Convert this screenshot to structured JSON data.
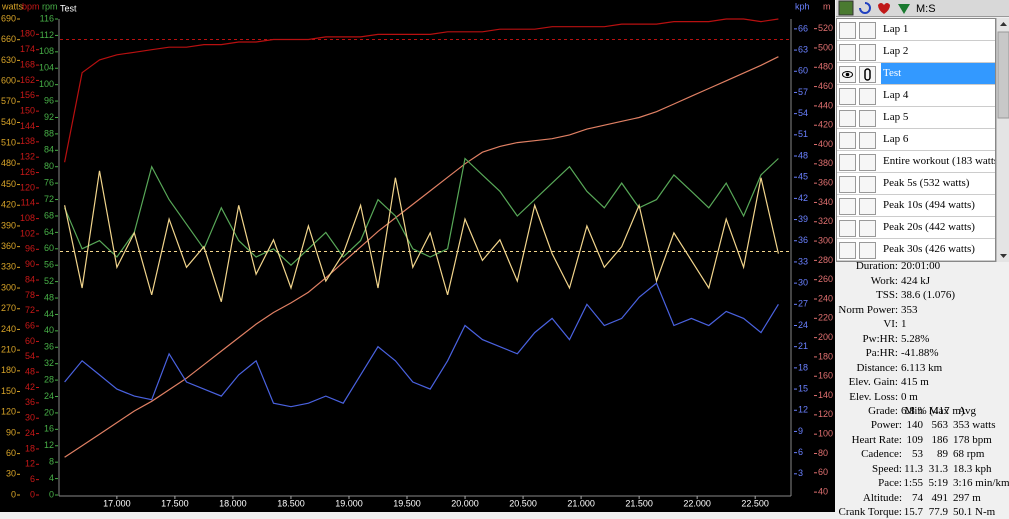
{
  "chart_data": {
    "type": "line",
    "title": "Test",
    "x": [
      16.55,
      16.7,
      16.85,
      17,
      17.15,
      17.3,
      17.45,
      17.6,
      17.75,
      17.9,
      18.05,
      18.2,
      18.35,
      18.5,
      18.65,
      18.8,
      18.95,
      19.1,
      19.25,
      19.4,
      19.55,
      19.7,
      19.85,
      20,
      20.15,
      20.3,
      20.45,
      20.6,
      20.75,
      20.9,
      21.05,
      21.2,
      21.35,
      21.5,
      21.65,
      21.8,
      21.95,
      22.1,
      22.25,
      22.4,
      22.55,
      22.7
    ],
    "xlim": [
      16.51,
      22.8
    ],
    "xticks": [
      {
        "value": 17,
        "label": "17.000"
      },
      {
        "value": 17.5,
        "label": "17.500"
      },
      {
        "value": 18,
        "label": "18.000"
      },
      {
        "value": 18.5,
        "label": "18.500"
      },
      {
        "value": 19,
        "label": "19.000"
      },
      {
        "value": 19.5,
        "label": "19.500"
      },
      {
        "value": 20,
        "label": "20.000"
      },
      {
        "value": 20.5,
        "label": "20.500"
      },
      {
        "value": 21,
        "label": "21.000"
      },
      {
        "value": 21.5,
        "label": "21.500"
      },
      {
        "value": 22,
        "label": "22.000"
      },
      {
        "value": 22.5,
        "label": "22.500"
      }
    ],
    "axes": [
      {
        "label": "watts",
        "side": "left",
        "color": "#d8a428",
        "ylim": [
          0,
          690
        ],
        "yticks": [
          0,
          30,
          60,
          90,
          120,
          150,
          180,
          210,
          240,
          270,
          300,
          330,
          360,
          390,
          420,
          450,
          480,
          510,
          540,
          570,
          600,
          630,
          660,
          690
        ],
        "series": [
          {
            "color": "#f2d58c",
            "mean": 353,
            "values": [
              420,
              300,
              470,
              330,
              380,
              290,
              400,
              330,
              360,
              280,
              420,
              320,
              370,
              300,
              390,
              310,
              350,
              420,
              300,
              460,
              330,
              380,
              290,
              400,
              340,
              370,
              310,
              420,
              350,
              300,
              390,
              330,
              360,
              420,
              310,
              380,
              340,
              300,
              400,
              330,
              460,
              350
            ]
          }
        ]
      },
      {
        "label": "bpm",
        "side": "left",
        "color": "#c81818",
        "ylim": [
          0,
          186
        ],
        "yticks": [
          0,
          6,
          12,
          18,
          24,
          30,
          36,
          42,
          48,
          54,
          60,
          66,
          72,
          78,
          84,
          90,
          96,
          102,
          108,
          114,
          120,
          126,
          132,
          138,
          144,
          150,
          156,
          162,
          168,
          174,
          180
        ],
        "series": [
          {
            "color": "#b81010",
            "mean": 178,
            "values": [
              130,
              165,
              170,
              172,
              173,
              174,
              175,
              175,
              176,
              176,
              177,
              177,
              178,
              178,
              178,
              179,
              179,
              179,
              180,
              180,
              180,
              180,
              181,
              181,
              181,
              182,
              182,
              182,
              183,
              183,
              183,
              183,
              184,
              184,
              184,
              185,
              185,
              185,
              186,
              186,
              185,
              186
            ]
          }
        ]
      },
      {
        "label": "rpm",
        "side": "left",
        "color": "#48b048",
        "ylim": [
          0,
          116
        ],
        "yticks": [
          0,
          4,
          8,
          12,
          16,
          20,
          24,
          28,
          32,
          36,
          40,
          44,
          48,
          52,
          56,
          60,
          64,
          68,
          72,
          76,
          80,
          84,
          88,
          92,
          96,
          100,
          104,
          108,
          112,
          116
        ],
        "series": [
          {
            "color": "#58a858",
            "values": [
              70,
              60,
              62,
              58,
              64,
              80,
              72,
              66,
              60,
              70,
              62,
              58,
              60,
              56,
              60,
              64,
              58,
              62,
              72,
              68,
              60,
              58,
              60,
              82,
              78,
              74,
              68,
              72,
              76,
              80,
              74,
              70,
              76,
              70,
              72,
              78,
              74,
              70,
              76,
              68,
              78,
              82
            ]
          }
        ]
      },
      {
        "label": "kph",
        "side": "right",
        "color": "#6a80ff",
        "ylim": [
          0,
          67.4
        ],
        "yticks": [
          3,
          6,
          9,
          12,
          15,
          18,
          21,
          24,
          27,
          30,
          33,
          36,
          39,
          42,
          45,
          48,
          51,
          54,
          57,
          60,
          63,
          66
        ],
        "series": [
          {
            "color": "#4a62e0",
            "values": [
              16,
              19,
              17,
              15,
              14,
              13.5,
              20,
              16,
              15,
              14,
              17,
              19,
              13,
              12.5,
              13,
              14,
              13,
              17,
              21,
              19,
              16,
              15,
              19,
              24,
              22,
              21,
              20,
              23,
              25,
              22,
              27,
              24,
              25,
              28,
              30,
              24,
              25,
              24,
              26,
              25,
              23,
              27
            ]
          }
        ]
      },
      {
        "label": "m",
        "side": "right",
        "color": "#e07070",
        "ylim": [
          37,
          530
        ],
        "yticks": [
          40,
          60,
          80,
          100,
          120,
          140,
          160,
          180,
          200,
          220,
          240,
          260,
          280,
          300,
          320,
          340,
          360,
          380,
          400,
          420,
          440,
          460,
          480,
          500,
          520
        ],
        "series": [
          {
            "color": "#e08064",
            "values": [
              76,
              88,
              100,
              112,
              124,
              134,
              146,
              158,
              172,
              186,
              200,
              214,
              226,
              236,
              247,
              262,
              278,
              294,
              310,
              324,
              338,
              352,
              366,
              380,
              392,
              398,
              402,
              404,
              406,
              410,
              416,
              420,
              424,
              428,
              434,
              442,
              450,
              458,
              466,
              474,
              482,
              491
            ]
          }
        ]
      }
    ]
  },
  "toolbar": {
    "mode": "M:S"
  },
  "intervals": [
    "Lap 1",
    "Lap 2",
    "Test",
    "Lap 4",
    "Lap 5",
    "Lap 6",
    "Entire workout (183 watts",
    "Peak 5s (532 watts)",
    "Peak 10s (494 watts)",
    "Peak 20s (442 watts)",
    "Peak 30s (426 watts)"
  ],
  "selected_interval": 2,
  "summary": [
    {
      "label": "Duration:",
      "value": "20:01:00"
    },
    {
      "label": "Work:",
      "value": "424 kJ"
    },
    {
      "label": "TSS:",
      "value": "38.6 (1.076)"
    },
    {
      "label": "Norm Power:",
      "value": "353"
    },
    {
      "label": "VI:",
      "value": "1"
    },
    {
      "label": "Pw:HR:",
      "value": "5.28%"
    },
    {
      "label": "Pa:HR:",
      "value": "-41.88%"
    },
    {
      "label": "Distance:",
      "value": "6.113 km"
    },
    {
      "label": "Elev. Gain:",
      "value": "415 m"
    },
    {
      "label": "Elev. Loss:",
      "value": "0 m"
    },
    {
      "label": "Grade:",
      "value": "6.8 % (417 m)"
    }
  ],
  "stats": {
    "header": [
      "Min",
      "Max",
      "Avg"
    ],
    "rows": [
      [
        "Power:",
        "140",
        "563",
        "353 watts"
      ],
      [
        "Heart Rate:",
        "109",
        "186",
        "178 bpm"
      ],
      [
        "Cadence:",
        "53",
        "89",
        "68 rpm"
      ],
      [
        "Speed:",
        "11.3",
        "31.3",
        "18.3 kph"
      ],
      [
        "Pace:",
        "1:55",
        "5:19",
        "3:16 min/km"
      ],
      [
        "Altitude:",
        "74",
        "491",
        "297 m"
      ],
      [
        "Crank Torque:",
        "15.7",
        "77.9",
        "50.1 N-m"
      ]
    ]
  }
}
